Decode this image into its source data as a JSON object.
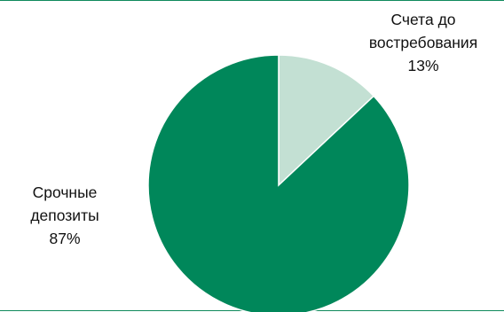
{
  "chart_data": {
    "type": "pie",
    "slices": [
      {
        "label_lines": [
          "Счета до",
          "востребования"
        ],
        "percent_label": "13%",
        "value": 13,
        "color": "#c3e0d3"
      },
      {
        "label_lines": [
          "Срочные",
          "депозиты"
        ],
        "percent_label": "87%",
        "value": 87,
        "color": "#00875a"
      }
    ],
    "start_angle_deg": 0,
    "direction": "clockwise",
    "slice_border_color": "#ffffff"
  }
}
